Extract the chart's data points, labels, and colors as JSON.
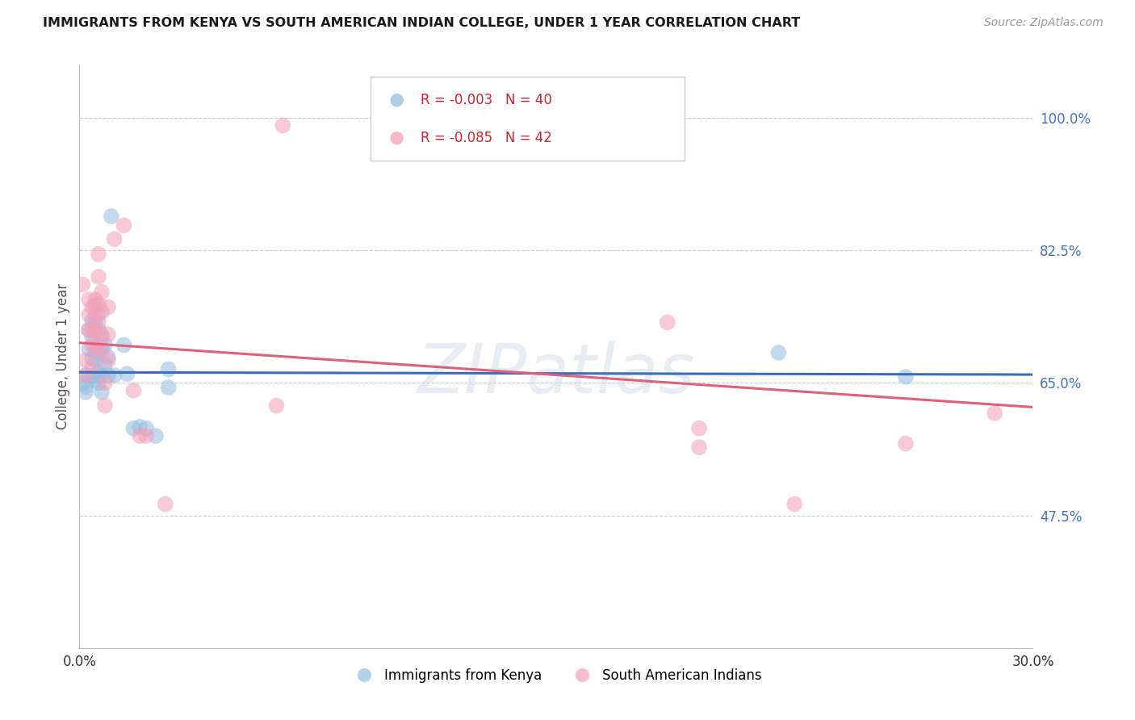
{
  "title": "IMMIGRANTS FROM KENYA VS SOUTH AMERICAN INDIAN COLLEGE, UNDER 1 YEAR CORRELATION CHART",
  "source": "Source: ZipAtlas.com",
  "ylabel": "College, Under 1 year",
  "xlim": [
    0.0,
    0.3
  ],
  "ylim": [
    0.3,
    1.07
  ],
  "ytick_vals": [
    0.475,
    0.65,
    0.825,
    1.0
  ],
  "ytick_labels": [
    "47.5%",
    "65.0%",
    "82.5%",
    "100.0%"
  ],
  "xtick_vals": [
    0.0,
    0.3
  ],
  "xtick_labels": [
    "0.0%",
    "30.0%"
  ],
  "kenya_color": "#92bde0",
  "sa_color": "#f4a0b8",
  "kenya_line_color": "#3b6bbf",
  "sa_line_color": "#e0607a",
  "legend_r1": "R = -0.003   N = 40",
  "legend_r2": "R = -0.085   N = 42",
  "legend_label1": "Immigrants from Kenya",
  "legend_label2": "South American Indians",
  "watermark": "ZIPatlas",
  "kenya_points": [
    [
      0.001,
      0.65
    ],
    [
      0.002,
      0.66
    ],
    [
      0.002,
      0.645
    ],
    [
      0.002,
      0.638
    ],
    [
      0.003,
      0.72
    ],
    [
      0.003,
      0.695
    ],
    [
      0.004,
      0.732
    ],
    [
      0.004,
      0.71
    ],
    [
      0.004,
      0.682
    ],
    [
      0.004,
      0.66
    ],
    [
      0.005,
      0.752
    ],
    [
      0.005,
      0.73
    ],
    [
      0.005,
      0.7
    ],
    [
      0.005,
      0.68
    ],
    [
      0.005,
      0.654
    ],
    [
      0.006,
      0.74
    ],
    [
      0.006,
      0.72
    ],
    [
      0.006,
      0.69
    ],
    [
      0.006,
      0.664
    ],
    [
      0.006,
      0.65
    ],
    [
      0.007,
      0.714
    ],
    [
      0.007,
      0.696
    ],
    [
      0.007,
      0.66
    ],
    [
      0.007,
      0.638
    ],
    [
      0.008,
      0.7
    ],
    [
      0.008,
      0.674
    ],
    [
      0.009,
      0.684
    ],
    [
      0.009,
      0.66
    ],
    [
      0.01,
      0.87
    ],
    [
      0.011,
      0.66
    ],
    [
      0.014,
      0.7
    ],
    [
      0.015,
      0.662
    ],
    [
      0.017,
      0.59
    ],
    [
      0.019,
      0.592
    ],
    [
      0.021,
      0.59
    ],
    [
      0.024,
      0.58
    ],
    [
      0.028,
      0.668
    ],
    [
      0.028,
      0.644
    ],
    [
      0.22,
      0.69
    ],
    [
      0.26,
      0.658
    ]
  ],
  "sa_points": [
    [
      0.001,
      0.78
    ],
    [
      0.002,
      0.68
    ],
    [
      0.002,
      0.66
    ],
    [
      0.003,
      0.76
    ],
    [
      0.003,
      0.74
    ],
    [
      0.003,
      0.72
    ],
    [
      0.004,
      0.75
    ],
    [
      0.004,
      0.72
    ],
    [
      0.004,
      0.7
    ],
    [
      0.004,
      0.67
    ],
    [
      0.005,
      0.76
    ],
    [
      0.005,
      0.74
    ],
    [
      0.005,
      0.72
    ],
    [
      0.005,
      0.695
    ],
    [
      0.006,
      0.82
    ],
    [
      0.006,
      0.79
    ],
    [
      0.006,
      0.754
    ],
    [
      0.006,
      0.73
    ],
    [
      0.006,
      0.7
    ],
    [
      0.007,
      0.77
    ],
    [
      0.007,
      0.744
    ],
    [
      0.007,
      0.71
    ],
    [
      0.007,
      0.69
    ],
    [
      0.008,
      0.65
    ],
    [
      0.008,
      0.62
    ],
    [
      0.009,
      0.75
    ],
    [
      0.009,
      0.714
    ],
    [
      0.009,
      0.68
    ],
    [
      0.011,
      0.84
    ],
    [
      0.014,
      0.858
    ],
    [
      0.017,
      0.64
    ],
    [
      0.019,
      0.58
    ],
    [
      0.021,
      0.58
    ],
    [
      0.027,
      0.49
    ],
    [
      0.062,
      0.62
    ],
    [
      0.064,
      0.99
    ],
    [
      0.185,
      0.73
    ],
    [
      0.195,
      0.59
    ],
    [
      0.195,
      0.565
    ],
    [
      0.225,
      0.49
    ],
    [
      0.26,
      0.57
    ],
    [
      0.288,
      0.61
    ]
  ],
  "kenya_trend_x": [
    0.0,
    0.3
  ],
  "kenya_trend_y": [
    0.664,
    0.661
  ],
  "sa_trend_x": [
    0.0,
    0.3
  ],
  "sa_trend_y": [
    0.703,
    0.618
  ]
}
